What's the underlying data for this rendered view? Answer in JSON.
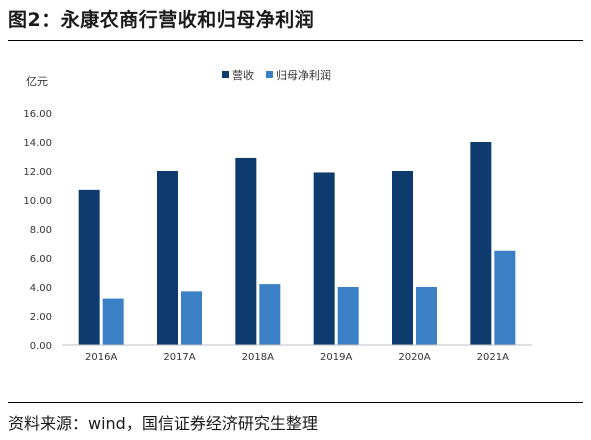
{
  "figure_title": "图2：永康农商行营收和归母净利润",
  "source_note": "资料来源：wind，国信证券经济研究生整理",
  "chart_data": {
    "type": "bar",
    "ylabel": "亿元",
    "categories": [
      "2016A",
      "2017A",
      "2018A",
      "2019A",
      "2020A",
      "2021A"
    ],
    "series": [
      {
        "name": "营收",
        "color": "#0d3b6e",
        "values": [
          10.7,
          12.0,
          12.9,
          11.9,
          12.0,
          14.0
        ]
      },
      {
        "name": "归母净利润",
        "color": "#3b7fc4",
        "values": [
          3.2,
          3.7,
          4.2,
          4.0,
          4.0,
          6.5
        ]
      }
    ],
    "ylim": [
      0,
      16
    ],
    "yticks": [
      "0.00",
      "2.00",
      "4.00",
      "6.00",
      "8.00",
      "10.00",
      "12.00",
      "14.00",
      "16.00"
    ],
    "legend_position": "top-center",
    "grid": false
  }
}
